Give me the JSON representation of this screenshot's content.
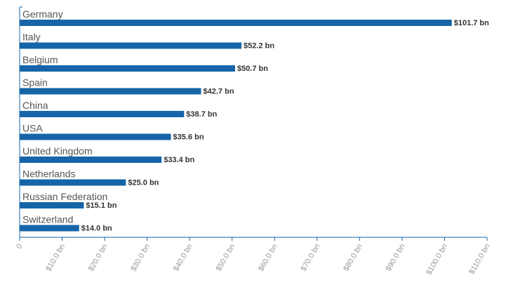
{
  "chart_data": {
    "type": "bar",
    "orientation": "horizontal",
    "categories": [
      "Germany",
      "Italy",
      "Belgium",
      "Spain",
      "China",
      "USA",
      "United Kingdom",
      "Netherlands",
      "Russian Federation",
      "Switzerland"
    ],
    "values": [
      101.7,
      52.2,
      50.7,
      42.7,
      38.7,
      35.6,
      33.4,
      25.0,
      15.1,
      14.0
    ],
    "value_labels": [
      "$101.7 bn",
      "$52.2 bn",
      "$50.7 bn",
      "$42.7 bn",
      "$38.7 bn",
      "$35.6 bn",
      "$33.4 bn",
      "$25.0 bn",
      "$15.1 bn",
      "$14.0 bn"
    ],
    "x_ticks": [
      "0",
      "$10.0 bn",
      "$20.0 bn",
      "$30.0 bn",
      "$40.0 bn",
      "$50.0 bn",
      "$60.0 bn",
      "$70.0 bn",
      "$80.0 bn",
      "$90.0 bn",
      "$100.0 bn",
      "$110.0 bn"
    ],
    "xlim": [
      0,
      110
    ],
    "title": "",
    "xlabel": "",
    "ylabel": "",
    "grid": false,
    "colors": {
      "bar": "#1565a8",
      "axis": "#1565a8"
    }
  }
}
